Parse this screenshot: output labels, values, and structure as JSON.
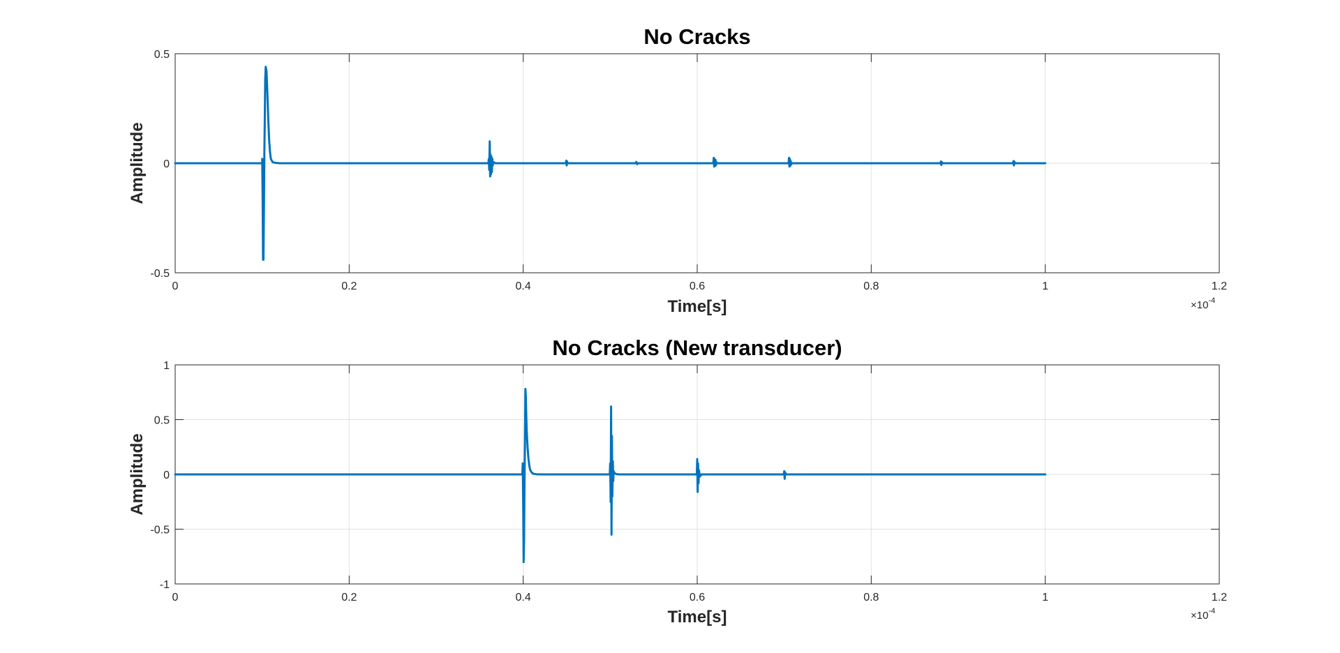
{
  "chart_data": [
    {
      "type": "line",
      "title": "No Cracks",
      "xlabel": "Time[s]",
      "ylabel": "Amplitude",
      "xlim": [
        0,
        1.2
      ],
      "ylim": [
        -0.5,
        0.5
      ],
      "x_exponent_base": "×10",
      "x_exponent_power": "-4",
      "x_ticks": [
        0,
        0.2,
        0.4,
        0.6,
        0.8,
        1,
        1.2
      ],
      "x_tick_labels": [
        "0",
        "0.2",
        "0.4",
        "0.6",
        "0.8",
        "1",
        "1.2"
      ],
      "y_ticks": [
        -0.5,
        0,
        0.5
      ],
      "y_tick_labels": [
        "-0.5",
        "0",
        "0.5"
      ],
      "grid": true,
      "series": [
        {
          "color": "#0072BD",
          "x": [
            0,
            0.1,
            0.1,
            0.1005,
            0.101,
            0.1015,
            0.102,
            0.1025,
            0.103,
            0.1035,
            0.104,
            0.105,
            0.106,
            0.107,
            0.108,
            0.109,
            0.11,
            0.112,
            0.115,
            0.12,
            0.36,
            0.3605,
            0.361,
            0.3615,
            0.362,
            0.3625,
            0.363,
            0.3635,
            0.364,
            0.3645,
            0.365,
            0.366,
            0.368,
            0.449,
            0.4495,
            0.45,
            0.4505,
            0.451,
            0.529,
            0.53,
            0.531,
            0.532,
            0.6185,
            0.619,
            0.6195,
            0.62,
            0.6205,
            0.621,
            0.6215,
            0.622,
            0.623,
            0.705,
            0.7055,
            0.706,
            0.7065,
            0.707,
            0.7075,
            0.708,
            0.709,
            0.8795,
            0.88,
            0.8805,
            0.881,
            0.882,
            0.963,
            0.9635,
            0.964,
            0.9645,
            0.965,
            1.0
          ],
          "y": [
            0,
            0,
            0.02,
            -0.15,
            -0.44,
            -0.44,
            -0.2,
            0.05,
            0.2,
            0.38,
            0.44,
            0.42,
            0.32,
            0.2,
            0.11,
            0.05,
            0.02,
            0.005,
            0.002,
            0,
            0,
            0.02,
            -0.03,
            0.1,
            -0.06,
            0.04,
            -0.05,
            0.03,
            -0.04,
            0.02,
            -0.01,
            0.005,
            0,
            0,
            0.012,
            -0.01,
            0.008,
            0,
            0,
            0.006,
            -0.004,
            0,
            0,
            0.025,
            -0.015,
            0.02,
            -0.012,
            0.015,
            -0.01,
            0.005,
            0,
            0,
            0.025,
            -0.015,
            0.02,
            -0.012,
            0.01,
            -0.005,
            0,
            0,
            0.008,
            -0.008,
            0.006,
            0,
            0,
            0.01,
            -0.01,
            0.008,
            0,
            0
          ]
        }
      ]
    },
    {
      "type": "line",
      "title": "No Cracks (New transducer)",
      "xlabel": "Time[s]",
      "ylabel": "Amplitude",
      "xlim": [
        0,
        1.2
      ],
      "ylim": [
        -1,
        1
      ],
      "x_exponent_base": "×10",
      "x_exponent_power": "-4",
      "x_ticks": [
        0,
        0.2,
        0.4,
        0.6,
        0.8,
        1,
        1.2
      ],
      "x_tick_labels": [
        "0",
        "0.2",
        "0.4",
        "0.6",
        "0.8",
        "1",
        "1.2"
      ],
      "y_ticks": [
        -1,
        -0.5,
        0,
        0.5,
        1
      ],
      "y_tick_labels": [
        "-1",
        "-0.5",
        "0",
        "0.5",
        "1"
      ],
      "grid": true,
      "series": [
        {
          "color": "#0072BD",
          "x": [
            0,
            0.399,
            0.3995,
            0.4,
            0.4005,
            0.401,
            0.4015,
            0.402,
            0.4025,
            0.403,
            0.4035,
            0.404,
            0.405,
            0.406,
            0.407,
            0.408,
            0.41,
            0.412,
            0.415,
            0.42,
            0.4995,
            0.5,
            0.5005,
            0.501,
            0.5015,
            0.502,
            0.5025,
            0.503,
            0.5035,
            0.504,
            0.505,
            0.507,
            0.51,
            0.5995,
            0.6,
            0.6005,
            0.601,
            0.6015,
            0.602,
            0.603,
            0.605,
            0.6995,
            0.7,
            0.7005,
            0.701,
            0.702,
            1.0
          ],
          "y": [
            0,
            0,
            0.1,
            -0.3,
            -0.8,
            -0.6,
            -0.1,
            0.3,
            0.78,
            0.72,
            0.55,
            0.4,
            0.25,
            0.15,
            0.08,
            0.04,
            0.015,
            0.005,
            0.002,
            0,
            0,
            0.1,
            -0.25,
            0.62,
            -0.55,
            0.35,
            -0.2,
            0.12,
            -0.06,
            0.03,
            0.01,
            0.003,
            0,
            0,
            0.14,
            -0.16,
            0.1,
            -0.08,
            0.04,
            -0.02,
            0,
            0,
            0.03,
            -0.04,
            0.02,
            0,
            0
          ]
        }
      ]
    }
  ]
}
